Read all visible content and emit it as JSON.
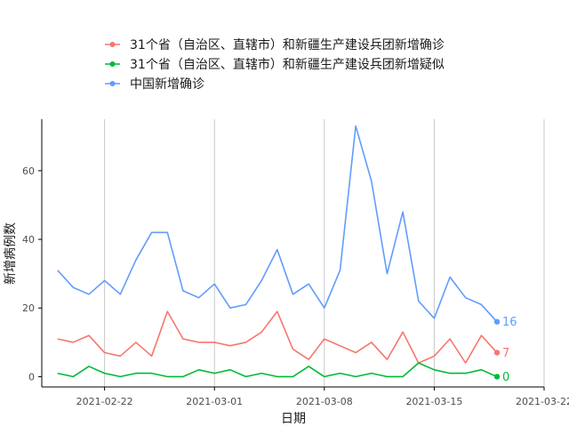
{
  "chart_data": {
    "type": "line",
    "xlabel": "日期",
    "ylabel": "新增病例数",
    "x_start": "2021-02-19",
    "x_end": "2021-03-20",
    "xlim": [
      "2021-02-18",
      "2021-03-22"
    ],
    "ylim": [
      -3,
      75
    ],
    "x_ticks": [
      "2021-02-22",
      "2021-03-01",
      "2021-03-08",
      "2021-03-15",
      "2021-03-22"
    ],
    "y_ticks": [
      0,
      20,
      40,
      60
    ],
    "vertical_grid": true,
    "horizontal_grid": false,
    "legend_position": "top",
    "series": [
      {
        "name": "31个省（自治区、直辖市）和新疆生产建设兵团新增确诊",
        "color": "#F8766D",
        "values": [
          11,
          10,
          12,
          7,
          6,
          10,
          6,
          19,
          11,
          10,
          10,
          9,
          10,
          13,
          19,
          8,
          5,
          11,
          9,
          7,
          10,
          5,
          13,
          4,
          6,
          11,
          4,
          12,
          7
        ],
        "end_label": "7"
      },
      {
        "name": "31个省（自治区、直辖市）和新疆生产建设兵团新增疑似",
        "color": "#00BA38",
        "values": [
          1,
          0,
          3,
          1,
          0,
          1,
          1,
          0,
          0,
          2,
          1,
          2,
          0,
          1,
          0,
          0,
          3,
          0,
          1,
          0,
          1,
          0,
          0,
          4,
          2,
          1,
          1,
          2,
          0
        ],
        "end_label": "0"
      },
      {
        "name": "中国新增确诊",
        "color": "#619CFF",
        "values": [
          31,
          26,
          24,
          28,
          24,
          34,
          42,
          42,
          25,
          23,
          27,
          20,
          21,
          28,
          37,
          24,
          27,
          20,
          31,
          73,
          57,
          30,
          48,
          22,
          17,
          29,
          23,
          21,
          16
        ],
        "end_label": "16"
      }
    ]
  }
}
